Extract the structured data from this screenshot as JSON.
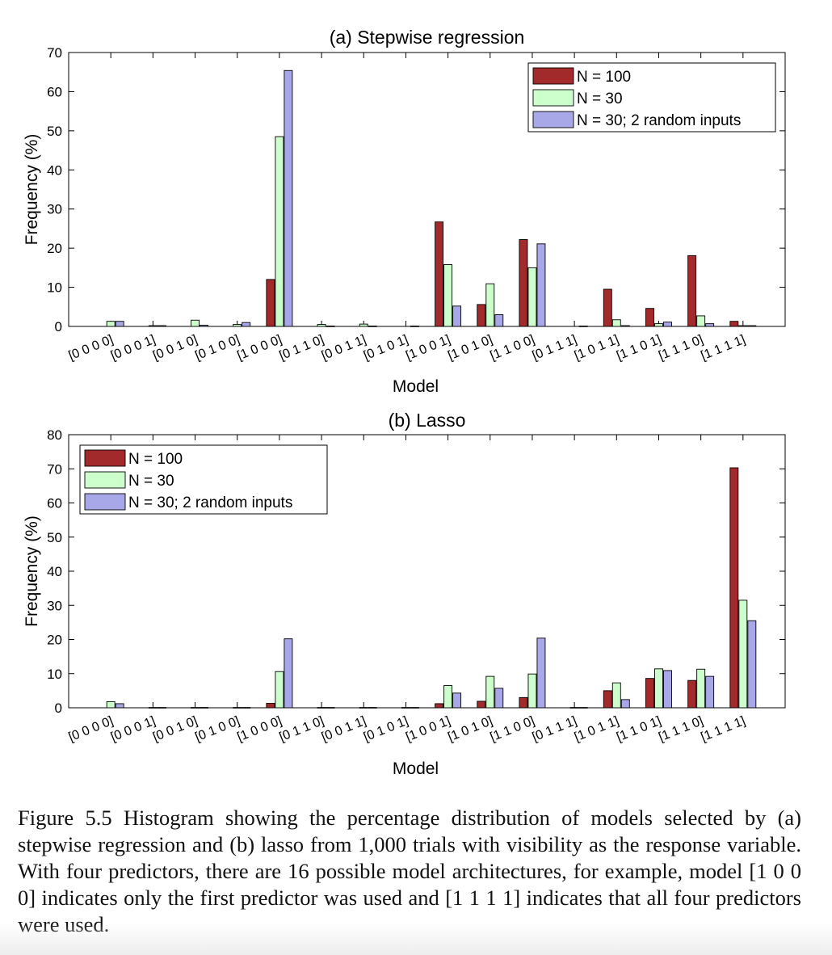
{
  "chart_data": [
    {
      "type": "bar",
      "title": "(a)  Stepwise regression",
      "xlabel": "Model",
      "ylabel": "Frequency (%)",
      "ylim": [
        0,
        70
      ],
      "yticks": [
        0,
        10,
        20,
        30,
        40,
        50,
        60,
        70
      ],
      "legend_position": "top-right",
      "categories": [
        "[0 0 0 0]",
        "[0 0 0 1]",
        "[0 0 1 0]",
        "[0 1 0 0]",
        "[1 0 0 0]",
        "[0 1 1 0]",
        "[0 0 1 1]",
        "[0 1 0 1]",
        "[1 0 0 1]",
        "[1 0 1 0]",
        "[1 1 0 0]",
        "[0 1 1 1]",
        "[1 0 1 1]",
        "[1 1 0 1]",
        "[1 1 1 0]",
        "[1 1 1 1]"
      ],
      "series": [
        {
          "name": "N = 100",
          "color": "#a32a2a",
          "values": [
            0,
            0,
            0,
            0,
            12.0,
            0,
            0,
            0,
            26.7,
            5.6,
            22.2,
            0,
            9.5,
            4.6,
            18.1,
            1.3
          ]
        },
        {
          "name": "N = 30",
          "color": "#ccffcc",
          "values": [
            1.3,
            0.2,
            1.6,
            0.5,
            48.5,
            0.5,
            0.6,
            0,
            15.8,
            10.9,
            15.0,
            0,
            1.7,
            0.7,
            2.7,
            0.2
          ]
        },
        {
          "name": "N = 30; 2 random inputs",
          "color": "#a8a8e8",
          "values": [
            1.3,
            0.2,
            0.3,
            1.0,
            65.4,
            0.1,
            0.1,
            0.1,
            5.2,
            3.0,
            21.1,
            0.1,
            0.2,
            1.1,
            0.7,
            0.2
          ]
        }
      ]
    },
    {
      "type": "bar",
      "title": "(b)  Lasso",
      "xlabel": "Model",
      "ylabel": "Frequency (%)",
      "ylim": [
        0,
        80
      ],
      "yticks": [
        0,
        10,
        20,
        30,
        40,
        50,
        60,
        70,
        80
      ],
      "legend_position": "top-left",
      "categories": [
        "[0 0 0 0]",
        "[0 0 0 1]",
        "[0 0 1 0]",
        "[0 1 0 0]",
        "[1 0 0 0]",
        "[0 1 1 0]",
        "[0 0 1 1]",
        "[0 1 0 1]",
        "[1 0 0 1]",
        "[1 0 1 0]",
        "[1 1 0 0]",
        "[0 1 1 1]",
        "[1 0 1 1]",
        "[1 1 0 1]",
        "[1 1 1 0]",
        "[1 1 1 1]"
      ],
      "series": [
        {
          "name": "N = 100",
          "color": "#a32a2a",
          "values": [
            0,
            0,
            0,
            0,
            1.3,
            0,
            0,
            0,
            1.2,
            1.9,
            3.0,
            0,
            5.0,
            8.6,
            8.0,
            70.3
          ]
        },
        {
          "name": "N = 30",
          "color": "#ccffcc",
          "values": [
            1.8,
            0.1,
            0.1,
            0.1,
            10.6,
            0.1,
            0.1,
            0.1,
            6.5,
            9.2,
            9.9,
            0.1,
            7.3,
            11.4,
            11.3,
            31.5
          ]
        },
        {
          "name": "N = 30; 2 random inputs",
          "color": "#a8a8e8",
          "values": [
            1.2,
            0.1,
            0.1,
            0.1,
            20.2,
            0.1,
            0.1,
            0.1,
            4.3,
            5.7,
            20.4,
            0.1,
            2.4,
            10.9,
            9.2,
            25.5
          ]
        }
      ]
    }
  ],
  "caption": "Figure 5.5 Histogram showing the percentage distribution of models selected by (a) stepwise regression and (b) lasso from 1,000 trials with visibility as the response variable. With four predictors, there are 16 possible model architectures, for example, model [1 0 0 0] indicates only the first predictor was used and [1 1 1 1] indicates that all four predictors were used."
}
